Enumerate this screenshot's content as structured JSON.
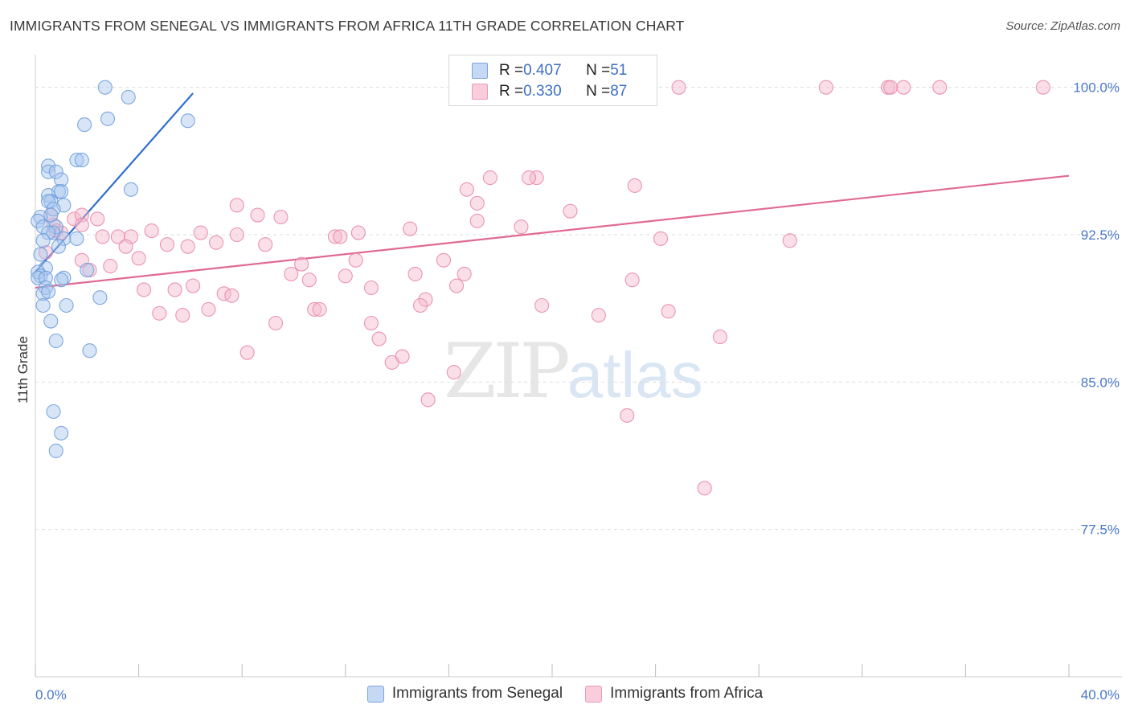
{
  "title": "IMMIGRANTS FROM SENEGAL VS IMMIGRANTS FROM AFRICA 11TH GRADE CORRELATION CHART",
  "source": "Source: ZipAtlas.com",
  "watermark": {
    "zip": "ZIP",
    "atlas": "atlas"
  },
  "colors": {
    "senegal_fill": "#a9c6ee",
    "senegal_stroke": "#6f9fdd",
    "senegal_line": "#2f6fce",
    "africa_fill": "#f5b8cc",
    "africa_stroke": "#e98aab",
    "africa_line": "#e06a95",
    "tick_text": "#4a78c8",
    "grid": "#dddddd"
  },
  "legend": {
    "senegal": {
      "r_label": "R = ",
      "r_value": "0.407",
      "n_label": "N = ",
      "n_value": "51"
    },
    "africa": {
      "r_label": "R = ",
      "r_value": "0.330",
      "n_label": "N = ",
      "n_value": "87"
    }
  },
  "chart_data": {
    "type": "scatter",
    "title": "IMMIGRANTS FROM SENEGAL VS IMMIGRANTS FROM AFRICA 11TH GRADE CORRELATION CHART",
    "ylabel": "11th Grade",
    "xlim": [
      0,
      40
    ],
    "ylim": [
      70,
      101.5
    ],
    "x_tick_labels": [
      "0.0%",
      "40.0%"
    ],
    "y_ticks": [
      77.5,
      85.0,
      92.5,
      100.0
    ],
    "y_tick_labels": [
      "77.5%",
      "85.0%",
      "92.5%",
      "100.0%"
    ],
    "series": [
      {
        "name": "Immigrants from Senegal",
        "r": 0.407,
        "n": 51,
        "trend": {
          "x": [
            0.0,
            6.1
          ],
          "y": [
            90.6,
            99.7
          ]
        },
        "points": [
          [
            2.7,
            100.0
          ],
          [
            3.6,
            99.5
          ],
          [
            2.8,
            98.4
          ],
          [
            1.9,
            98.1
          ],
          [
            5.9,
            98.3
          ],
          [
            1.6,
            96.3
          ],
          [
            1.8,
            96.3
          ],
          [
            0.5,
            96.0
          ],
          [
            0.5,
            95.7
          ],
          [
            0.8,
            95.7
          ],
          [
            1.0,
            95.3
          ],
          [
            3.7,
            94.8
          ],
          [
            0.9,
            94.7
          ],
          [
            1.0,
            94.7
          ],
          [
            0.5,
            94.5
          ],
          [
            0.6,
            94.2
          ],
          [
            0.5,
            94.2
          ],
          [
            1.1,
            94.0
          ],
          [
            0.7,
            93.8
          ],
          [
            0.6,
            93.5
          ],
          [
            0.2,
            93.4
          ],
          [
            0.1,
            93.2
          ],
          [
            0.3,
            92.9
          ],
          [
            0.8,
            92.9
          ],
          [
            0.7,
            92.6
          ],
          [
            0.5,
            92.6
          ],
          [
            1.1,
            92.3
          ],
          [
            1.6,
            92.3
          ],
          [
            0.3,
            92.2
          ],
          [
            0.9,
            91.9
          ],
          [
            0.2,
            91.5
          ],
          [
            0.4,
            90.8
          ],
          [
            2.0,
            90.7
          ],
          [
            0.1,
            90.6
          ],
          [
            0.2,
            90.4
          ],
          [
            0.1,
            90.3
          ],
          [
            1.1,
            90.3
          ],
          [
            0.4,
            90.3
          ],
          [
            1.0,
            90.2
          ],
          [
            0.4,
            89.8
          ],
          [
            0.3,
            89.5
          ],
          [
            2.5,
            89.3
          ],
          [
            1.2,
            88.9
          ],
          [
            0.3,
            88.9
          ],
          [
            0.6,
            88.1
          ],
          [
            0.8,
            87.1
          ],
          [
            2.1,
            86.6
          ],
          [
            0.7,
            83.5
          ],
          [
            1.0,
            82.4
          ],
          [
            0.8,
            81.5
          ],
          [
            0.5,
            89.6
          ]
        ]
      },
      {
        "name": "Immigrants from Africa",
        "r": 0.33,
        "n": 87,
        "trend": {
          "x": [
            0.0,
            40.0
          ],
          "y": [
            89.8,
            95.5
          ]
        },
        "points": [
          [
            24.9,
            100.0
          ],
          [
            30.6,
            100.0
          ],
          [
            33.0,
            100.0
          ],
          [
            33.1,
            100.0
          ],
          [
            33.6,
            100.0
          ],
          [
            35.0,
            100.0
          ],
          [
            39.0,
            100.0
          ],
          [
            21.5,
            99.5
          ],
          [
            17.6,
            95.4
          ],
          [
            19.4,
            95.4
          ],
          [
            19.1,
            95.4
          ],
          [
            23.2,
            95.0
          ],
          [
            16.7,
            94.8
          ],
          [
            17.1,
            94.1
          ],
          [
            20.7,
            93.7
          ],
          [
            7.8,
            94.0
          ],
          [
            8.6,
            93.5
          ],
          [
            9.5,
            93.4
          ],
          [
            2.4,
            93.3
          ],
          [
            0.6,
            93.5
          ],
          [
            1.5,
            93.3
          ],
          [
            1.8,
            93.5
          ],
          [
            0.7,
            93.0
          ],
          [
            1.8,
            93.0
          ],
          [
            17.1,
            93.2
          ],
          [
            18.8,
            92.9
          ],
          [
            14.5,
            92.8
          ],
          [
            0.8,
            92.7
          ],
          [
            1.0,
            92.6
          ],
          [
            4.5,
            92.7
          ],
          [
            6.4,
            92.6
          ],
          [
            12.5,
            92.6
          ],
          [
            11.6,
            92.4
          ],
          [
            11.8,
            92.4
          ],
          [
            7.8,
            92.5
          ],
          [
            2.6,
            92.4
          ],
          [
            3.2,
            92.4
          ],
          [
            3.7,
            92.4
          ],
          [
            24.2,
            92.3
          ],
          [
            29.2,
            92.2
          ],
          [
            7.0,
            92.1
          ],
          [
            5.1,
            92.0
          ],
          [
            5.9,
            91.9
          ],
          [
            3.5,
            91.9
          ],
          [
            8.9,
            92.0
          ],
          [
            4.0,
            91.3
          ],
          [
            1.8,
            91.2
          ],
          [
            12.4,
            91.2
          ],
          [
            10.3,
            91.0
          ],
          [
            15.8,
            91.2
          ],
          [
            2.9,
            90.9
          ],
          [
            0.4,
            91.6
          ],
          [
            2.1,
            90.7
          ],
          [
            14.7,
            90.5
          ],
          [
            16.6,
            90.5
          ],
          [
            9.9,
            90.5
          ],
          [
            12.0,
            90.4
          ],
          [
            10.6,
            90.2
          ],
          [
            23.1,
            90.2
          ],
          [
            6.1,
            89.9
          ],
          [
            16.3,
            89.9
          ],
          [
            4.2,
            89.7
          ],
          [
            5.4,
            89.7
          ],
          [
            13.0,
            89.8
          ],
          [
            7.3,
            89.5
          ],
          [
            7.6,
            89.4
          ],
          [
            15.1,
            89.2
          ],
          [
            14.9,
            88.9
          ],
          [
            19.6,
            88.9
          ],
          [
            10.8,
            88.7
          ],
          [
            11.0,
            88.7
          ],
          [
            6.7,
            88.7
          ],
          [
            4.8,
            88.5
          ],
          [
            5.7,
            88.4
          ],
          [
            21.8,
            88.4
          ],
          [
            24.5,
            88.6
          ],
          [
            9.3,
            88.0
          ],
          [
            13.0,
            88.0
          ],
          [
            13.3,
            87.2
          ],
          [
            26.5,
            87.3
          ],
          [
            8.2,
            86.5
          ],
          [
            14.2,
            86.3
          ],
          [
            13.8,
            86.0
          ],
          [
            16.2,
            85.5
          ],
          [
            15.2,
            84.1
          ],
          [
            22.9,
            83.3
          ],
          [
            25.9,
            79.6
          ]
        ]
      }
    ]
  }
}
